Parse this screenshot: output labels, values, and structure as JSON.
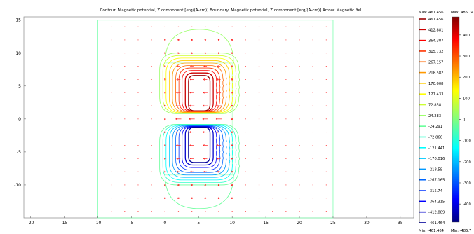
{
  "title": "Contour: Magnetic potential, Z component [erg/(A-cm)]   Boundary: Magnetic potential, Z component [erg/(A-cm)]   Arrow: Magnetic fiel",
  "chart_data": {
    "type": "contour",
    "title": "Contour: Magnetic potential, Z component [erg/(A-cm)]   Boundary: Magnetic potential, Z component [erg/(A-cm)]   Arrow: Magnetic fiel",
    "xlim": [
      -21,
      37
    ],
    "ylim": [
      -15,
      15.5
    ],
    "x_ticks": [
      -20,
      -15,
      -10,
      -5,
      0,
      5,
      10,
      15,
      20,
      25,
      30,
      35
    ],
    "y_ticks": [
      15,
      10,
      5,
      0,
      -5,
      -10
    ],
    "grid": false,
    "domain": {
      "xmin": -10,
      "xmax": 25,
      "ymin": -15,
      "ymax": 15
    },
    "contour_levels": [
      461.456,
      412.881,
      364.307,
      315.732,
      267.157,
      218.582,
      170.008,
      121.433,
      72.858,
      24.283,
      -24.291,
      -72.866,
      -121.441,
      -170.016,
      -218.59,
      -267.165,
      -315.74,
      -364.315,
      -412.889,
      -461.464
    ],
    "contour_legend": {
      "max_label": "Max: 461.456",
      "min_label": "Min: -461.464"
    },
    "colorbar": {
      "max_label": "Max: 485.74",
      "min_label": "Min: -485.7",
      "ticks": [
        400,
        300,
        200,
        100,
        0,
        -100,
        -200,
        -300,
        -400
      ],
      "range": [
        -485.7,
        485.74
      ]
    },
    "arrows": {
      "color": "#ff2020",
      "description": "magnetic field"
    }
  }
}
